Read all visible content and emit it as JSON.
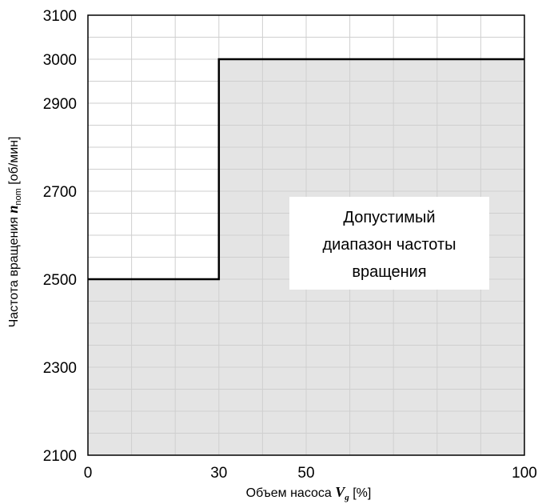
{
  "chart_data": {
    "type": "line",
    "title": "",
    "xlabel": {
      "prefix": "Объем насоса ",
      "symbol": "V",
      "subscript": "g",
      "suffix": " [%]"
    },
    "ylabel": {
      "prefix": "Частота вращения ",
      "symbol": "n",
      "subscript": "nom",
      "suffix": " [об/мин]"
    },
    "xlim": [
      0,
      100
    ],
    "ylim": [
      2100,
      3100
    ],
    "x_ticks": [
      0,
      30,
      50,
      100
    ],
    "y_ticks": [
      2100,
      2300,
      2500,
      2700,
      2900,
      3000,
      3100
    ],
    "grid": true,
    "x_grid_step": 10,
    "y_grid_step": 50,
    "series": [
      {
        "points": [
          [
            0,
            2500
          ],
          [
            30,
            2500
          ],
          [
            30,
            3000
          ],
          [
            100,
            3000
          ]
        ]
      }
    ],
    "fill_below": true,
    "fill_color": "#e4e4e4",
    "line_color": "#000000",
    "grid_color": "#cfcfcf",
    "annotation": {
      "lines": [
        "Допустимый",
        "диапазон частоты",
        "вращения"
      ],
      "background": "#ffffff"
    }
  }
}
